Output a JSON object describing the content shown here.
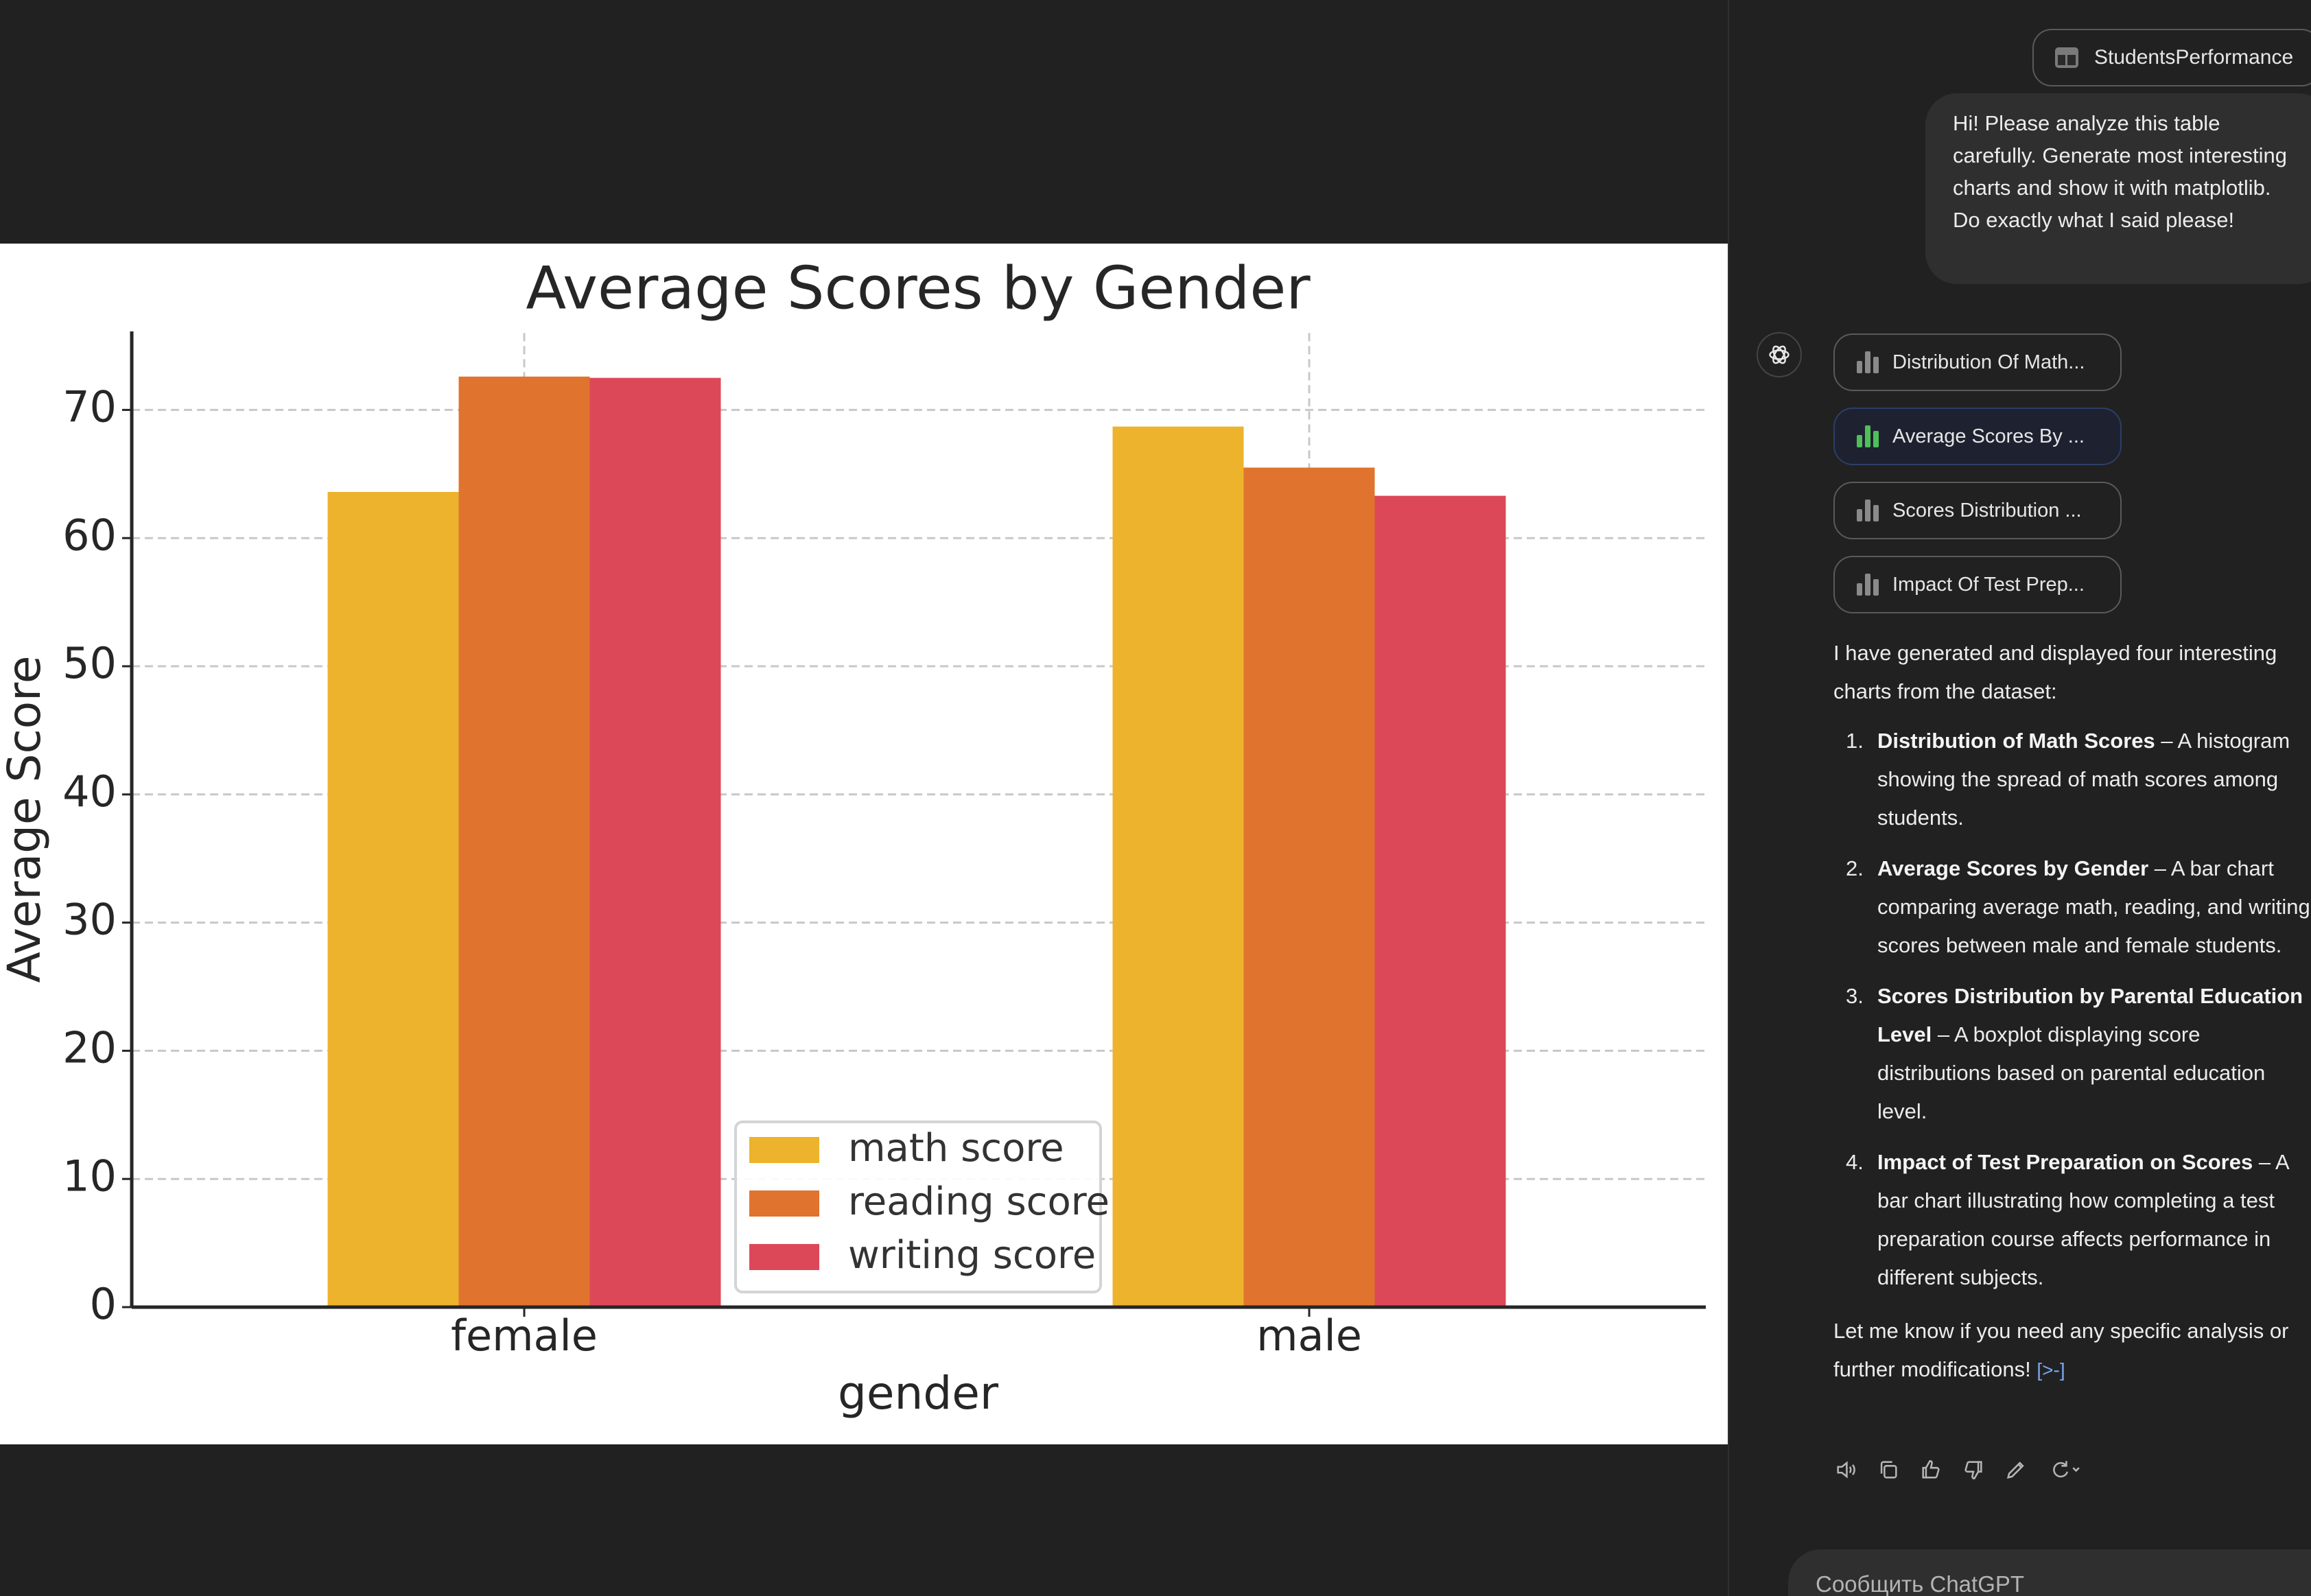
{
  "sidebar": {
    "file_chip": {
      "label": "StudentsPerformance",
      "icon": "table-icon"
    },
    "user_message": "Hi! Please analyze this table carefully. Generate most interesting charts and show it with matplotlib. Do exactly what I said please!",
    "artifacts": [
      {
        "label": "Distribution Of Math...",
        "icon": "bar-chart-icon",
        "active": false
      },
      {
        "label": "Average Scores By ...",
        "icon": "bar-chart-icon",
        "active": true
      },
      {
        "label": "Scores Distribution ...",
        "icon": "bar-chart-icon",
        "active": false
      },
      {
        "label": "Impact Of Test Prep...",
        "icon": "bar-chart-icon",
        "active": false
      }
    ],
    "answer": {
      "intro": "I have generated and displayed four interesting charts from the dataset:",
      "items": [
        {
          "num": "1.",
          "title": "Distribution of Math Scores",
          "text": " – A histogram showing the spread of math scores among students."
        },
        {
          "num": "2.",
          "title": "Average Scores by Gender",
          "text": " – A bar chart comparing average math, reading, and writing scores between male and female students."
        },
        {
          "num": "3.",
          "title": "Scores Distribution by Parental Education Level",
          "text": " – A boxplot displaying score distributions based on parental education level."
        },
        {
          "num": "4.",
          "title": "Impact of Test Preparation on Scores",
          "text": " – A bar chart illustrating how completing a test preparation course affects performance in different subjects."
        }
      ],
      "closing": "Let me know if you need any specific analysis or further modifications!",
      "citation": "[>-]"
    },
    "actions": [
      "read-aloud-icon",
      "copy-icon",
      "thumbs-up-icon",
      "thumbs-down-icon",
      "edit-icon",
      "regenerate-icon"
    ],
    "composer_placeholder": "Сообщить ChatGPT"
  },
  "chart_data": {
    "type": "bar",
    "title": "Average Scores by Gender",
    "xlabel": "gender",
    "ylabel": "Average Score",
    "categories": [
      "female",
      "male"
    ],
    "series": [
      {
        "name": "math score",
        "values": [
          63.6,
          68.7
        ],
        "color": "#EDB32C"
      },
      {
        "name": "reading score",
        "values": [
          72.6,
          65.5
        ],
        "color": "#E0732E"
      },
      {
        "name": "writing score",
        "values": [
          72.5,
          63.3
        ],
        "color": "#DC4858"
      }
    ],
    "ylim": [
      0,
      76
    ],
    "yticks": [
      "0",
      "10",
      "20",
      "30",
      "40",
      "50",
      "60",
      "70"
    ],
    "grid": true,
    "legend_position": "lower center"
  }
}
